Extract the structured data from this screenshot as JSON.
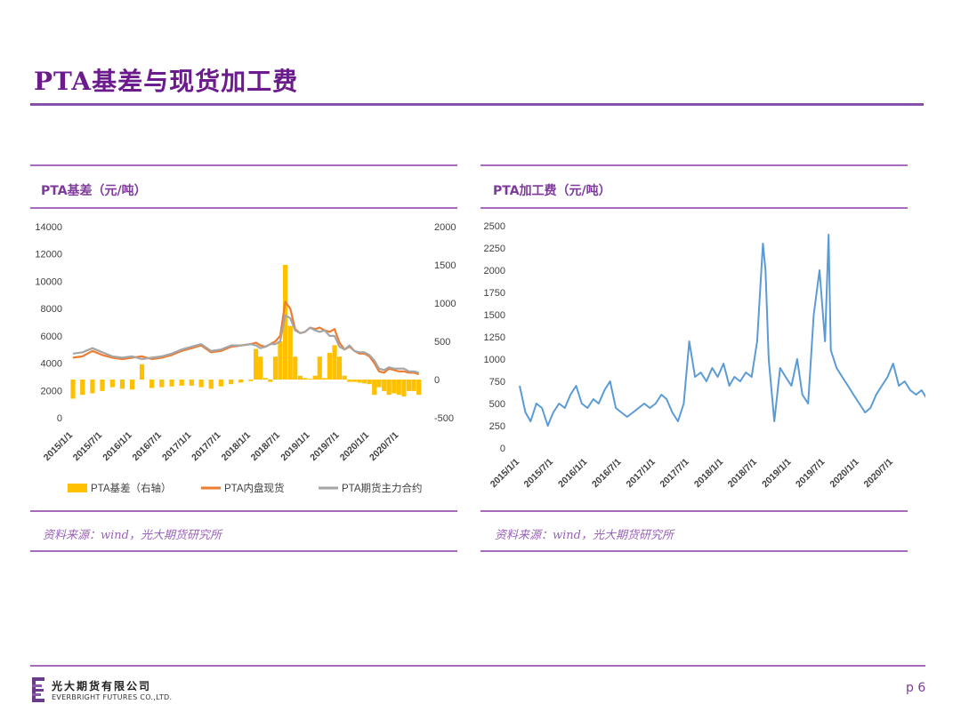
{
  "page": {
    "title": "PTA基差与现货加工费",
    "page_number": "p 6",
    "colors": {
      "accent": "#6b1b8c",
      "rule": "#a66bbd"
    }
  },
  "footer": {
    "company_cn": "光大期货有限公司",
    "company_en": "EVERBRIGHT FUTURES CO.,LTD."
  },
  "left_panel": {
    "title": "PTA基差（元/吨）",
    "source": "资料来源：wind，光大期货研究所"
  },
  "right_panel": {
    "title": "PTA加工费（元/吨）",
    "source": "资料来源：wind，光大期货研究所"
  },
  "chart_data": [
    {
      "type": "line",
      "x_range": [
        "2015/1/1",
        "2020/11/30"
      ],
      "x_tick_labels": [
        "2015/1/1",
        "2015/7/1",
        "2016/1/1",
        "2016/7/1",
        "2017/1/1",
        "2017/7/1",
        "2018/1/1",
        "2018/7/1",
        "2019/1/1",
        "2019/7/1",
        "2020/1/1",
        "2020/7/1"
      ],
      "ylim": [
        0,
        14000
      ],
      "y_ticks": [
        "0",
        "2000",
        "4000",
        "6000",
        "8000",
        "10000",
        "12000",
        "14000"
      ],
      "y2lim": [
        -500,
        2000
      ],
      "y2_ticks": [
        "-500",
        "0",
        "500",
        "1000",
        "1500",
        "2000"
      ],
      "legend_position": "bottom",
      "grid": false,
      "colors": {
        "basis": "#ffc000",
        "spot": "#ed7d31",
        "futures": "#a5a5a5"
      },
      "series": [
        {
          "name": "PTA基差（右轴）",
          "axis": "right",
          "style": "bar",
          "x": [
            "2015/1/1",
            "2015/3/1",
            "2015/5/1",
            "2015/7/1",
            "2015/9/1",
            "2015/11/1",
            "2016/1/1",
            "2016/3/1",
            "2016/5/1",
            "2016/7/1",
            "2016/9/1",
            "2016/11/1",
            "2017/1/1",
            "2017/3/1",
            "2017/5/1",
            "2017/7/1",
            "2017/9/1",
            "2017/11/1",
            "2018/1/1",
            "2018/2/1",
            "2018/3/1",
            "2018/4/1",
            "2018/5/1",
            "2018/6/1",
            "2018/7/1",
            "2018/8/1",
            "2018/9/1",
            "2018/10/1",
            "2018/11/1",
            "2018/12/1",
            "2019/1/1",
            "2019/2/1",
            "2019/3/1",
            "2019/4/1",
            "2019/5/1",
            "2019/6/1",
            "2019/7/1",
            "2019/8/1",
            "2019/9/1",
            "2019/10/1",
            "2019/11/1",
            "2019/12/1",
            "2020/1/1",
            "2020/2/1",
            "2020/3/1",
            "2020/4/1",
            "2020/5/1",
            "2020/6/1",
            "2020/7/1",
            "2020/8/1",
            "2020/9/1",
            "2020/10/1",
            "2020/11/1"
          ],
          "values": [
            -250,
            -200,
            -180,
            -150,
            -100,
            -120,
            -130,
            200,
            -110,
            -100,
            -90,
            -80,
            -80,
            -100,
            -120,
            -90,
            -60,
            -40,
            -20,
            400,
            300,
            20,
            -30,
            300,
            500,
            1500,
            700,
            300,
            50,
            20,
            10,
            50,
            300,
            20,
            350,
            450,
            300,
            50,
            -30,
            -30,
            -40,
            -50,
            -60,
            -200,
            -100,
            -150,
            -200,
            -180,
            -200,
            -220,
            -150,
            -150,
            -200
          ]
        },
        {
          "name": "PTA内盘现货",
          "axis": "left",
          "style": "line",
          "x": [
            "2015/1/1",
            "2015/3/1",
            "2015/5/1",
            "2015/7/1",
            "2015/9/1",
            "2015/11/1",
            "2016/1/1",
            "2016/3/1",
            "2016/5/1",
            "2016/7/1",
            "2016/9/1",
            "2016/11/1",
            "2017/1/1",
            "2017/3/1",
            "2017/5/1",
            "2017/7/1",
            "2017/9/1",
            "2017/11/1",
            "2018/1/1",
            "2018/2/1",
            "2018/3/1",
            "2018/4/1",
            "2018/5/1",
            "2018/6/1",
            "2018/7/1",
            "2018/8/1",
            "2018/9/1",
            "2018/10/1",
            "2018/11/1",
            "2018/12/1",
            "2019/1/1",
            "2019/2/1",
            "2019/3/1",
            "2019/4/1",
            "2019/5/1",
            "2019/6/1",
            "2019/7/1",
            "2019/8/1",
            "2019/9/1",
            "2019/10/1",
            "2019/11/1",
            "2019/12/1",
            "2020/1/1",
            "2020/2/1",
            "2020/3/1",
            "2020/4/1",
            "2020/5/1",
            "2020/6/1",
            "2020/7/1",
            "2020/8/1",
            "2020/9/1",
            "2020/10/1",
            "2020/11/1"
          ],
          "values": [
            4400,
            4500,
            4900,
            4600,
            4400,
            4300,
            4400,
            4500,
            4300,
            4400,
            4600,
            4900,
            5100,
            5300,
            4800,
            4900,
            5200,
            5300,
            5400,
            5500,
            5300,
            5200,
            5400,
            5600,
            6000,
            8500,
            8000,
            6500,
            6200,
            6300,
            6600,
            6500,
            6600,
            6400,
            6300,
            6500,
            5500,
            5000,
            5200,
            4900,
            4700,
            4700,
            4500,
            4000,
            3400,
            3300,
            3600,
            3500,
            3400,
            3400,
            3300,
            3300,
            3200
          ]
        },
        {
          "name": "PTA期货主力合约",
          "axis": "left",
          "style": "line",
          "x": [
            "2015/1/1",
            "2015/3/1",
            "2015/5/1",
            "2015/7/1",
            "2015/9/1",
            "2015/11/1",
            "2016/1/1",
            "2016/3/1",
            "2016/5/1",
            "2016/7/1",
            "2016/9/1",
            "2016/11/1",
            "2017/1/1",
            "2017/3/1",
            "2017/5/1",
            "2017/7/1",
            "2017/9/1",
            "2017/11/1",
            "2018/1/1",
            "2018/2/1",
            "2018/3/1",
            "2018/4/1",
            "2018/5/1",
            "2018/6/1",
            "2018/7/1",
            "2018/8/1",
            "2018/9/1",
            "2018/10/1",
            "2018/11/1",
            "2018/12/1",
            "2019/1/1",
            "2019/2/1",
            "2019/3/1",
            "2019/4/1",
            "2019/5/1",
            "2019/6/1",
            "2019/7/1",
            "2019/8/1",
            "2019/9/1",
            "2019/10/1",
            "2019/11/1",
            "2019/12/1",
            "2020/1/1",
            "2020/2/1",
            "2020/3/1",
            "2020/4/1",
            "2020/5/1",
            "2020/6/1",
            "2020/7/1",
            "2020/8/1",
            "2020/9/1",
            "2020/10/1",
            "2020/11/1"
          ],
          "values": [
            4700,
            4800,
            5100,
            4800,
            4500,
            4400,
            4500,
            4300,
            4400,
            4500,
            4700,
            5000,
            5200,
            5400,
            4900,
            5000,
            5300,
            5300,
            5400,
            5300,
            5100,
            5200,
            5400,
            5400,
            5600,
            7500,
            7300,
            6400,
            6200,
            6300,
            6600,
            6400,
            6300,
            6400,
            6000,
            6000,
            5200,
            5000,
            5300,
            4900,
            4800,
            4800,
            4600,
            4200,
            3600,
            3500,
            3700,
            3600,
            3600,
            3600,
            3400,
            3400,
            3300
          ]
        }
      ]
    },
    {
      "type": "line",
      "x_range": [
        "2015/1/1",
        "2020/12/31"
      ],
      "x_tick_labels": [
        "2015/1/1",
        "2015/7/1",
        "2016/1/1",
        "2016/7/1",
        "2017/1/1",
        "2017/7/1",
        "2018/1/1",
        "2018/7/1",
        "2019/1/1",
        "2019/7/1",
        "2020/1/1",
        "2020/7/1"
      ],
      "ylim": [
        0,
        2500
      ],
      "y_ticks": [
        "0",
        "250",
        "500",
        "750",
        "1000",
        "1250",
        "1500",
        "1750",
        "2000",
        "2250",
        "2500"
      ],
      "grid": false,
      "colors": {
        "line": "#5b9bd5"
      },
      "series": [
        {
          "name": "",
          "x": [
            "2015/1/1",
            "2015/2/1",
            "2015/3/1",
            "2015/4/1",
            "2015/5/1",
            "2015/6/1",
            "2015/7/1",
            "2015/8/1",
            "2015/9/1",
            "2015/10/1",
            "2015/11/1",
            "2015/12/1",
            "2016/1/1",
            "2016/2/1",
            "2016/3/1",
            "2016/4/1",
            "2016/5/1",
            "2016/6/1",
            "2016/7/1",
            "2016/8/1",
            "2016/9/1",
            "2016/10/1",
            "2016/11/1",
            "2016/12/1",
            "2017/1/1",
            "2017/2/1",
            "2017/3/1",
            "2017/4/1",
            "2017/5/1",
            "2017/6/1",
            "2017/7/1",
            "2017/8/1",
            "2017/9/1",
            "2017/10/1",
            "2017/11/1",
            "2017/12/1",
            "2018/1/1",
            "2018/2/1",
            "2018/3/1",
            "2018/4/1",
            "2018/5/1",
            "2018/6/1",
            "2018/7/1",
            "2018/8/1",
            "2018/8/15",
            "2018/9/1",
            "2018/10/1",
            "2018/11/1",
            "2018/12/1",
            "2019/1/1",
            "2019/2/1",
            "2019/3/1",
            "2019/4/1",
            "2019/5/1",
            "2019/6/1",
            "2019/7/1",
            "2019/7/20",
            "2019/8/1",
            "2019/9/1",
            "2019/10/1",
            "2019/11/1",
            "2019/12/1",
            "2020/1/1",
            "2020/2/1",
            "2020/3/1",
            "2020/4/1",
            "2020/5/1",
            "2020/6/1",
            "2020/7/1",
            "2020/8/1",
            "2020/9/1",
            "2020/10/1",
            "2020/11/1",
            "2020/12/1",
            "2020/12/31"
          ],
          "values": [
            700,
            400,
            300,
            500,
            450,
            250,
            400,
            500,
            450,
            600,
            700,
            500,
            450,
            550,
            500,
            650,
            750,
            450,
            400,
            350,
            400,
            450,
            500,
            450,
            500,
            600,
            550,
            400,
            300,
            500,
            1200,
            800,
            850,
            750,
            900,
            800,
            950,
            700,
            800,
            750,
            850,
            800,
            1200,
            2300,
            2000,
            1000,
            300,
            900,
            800,
            700,
            1000,
            600,
            500,
            1500,
            2000,
            1200,
            2400,
            1100,
            900,
            800,
            700,
            600,
            500,
            400,
            450,
            600,
            700,
            800,
            950,
            700,
            750,
            650,
            600,
            650,
            550
          ]
        }
      ]
    }
  ]
}
